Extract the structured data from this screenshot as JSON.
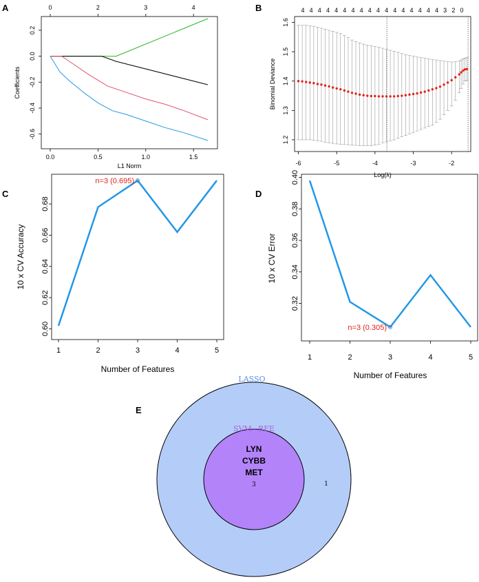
{
  "panels": {
    "A": "A",
    "B": "B",
    "C": "C",
    "D": "D",
    "E": "E"
  },
  "chart_data": [
    {
      "id": "A",
      "type": "line",
      "xlabel": "L1 Norm",
      "ylabel": "Coefficients",
      "xlim": [
        0,
        1.65
      ],
      "ylim": [
        -0.65,
        0.29
      ],
      "x_ticks": [
        "0.0",
        "0.5",
        "1.0",
        "1.5"
      ],
      "y_ticks": [
        "-0.6",
        "-0.4",
        "-0.2",
        "0.0",
        "0.2"
      ],
      "top_ticks": [
        "0",
        "2",
        "3",
        "4"
      ],
      "series": [
        {
          "color": "#22b522",
          "x": [
            0,
            0.69,
            1.65
          ],
          "y": [
            0,
            0,
            0.29
          ]
        },
        {
          "color": "#000000",
          "x": [
            0,
            0.54,
            0.69,
            1.65
          ],
          "y": [
            0,
            0,
            -0.04,
            -0.22
          ]
        },
        {
          "color": "#df536b",
          "x": [
            0,
            0.12,
            0.22,
            0.4,
            0.6,
            0.8,
            1.0,
            1.2,
            1.4,
            1.65
          ],
          "y": [
            0,
            0,
            -0.05,
            -0.14,
            -0.23,
            -0.28,
            -0.33,
            -0.37,
            -0.42,
            -0.49
          ]
        },
        {
          "color": "#2297e6",
          "x": [
            0,
            0.1,
            0.2,
            0.35,
            0.5,
            0.65,
            0.8,
            1.0,
            1.2,
            1.4,
            1.65
          ],
          "y": [
            0,
            -0.12,
            -0.19,
            -0.28,
            -0.36,
            -0.42,
            -0.45,
            -0.5,
            -0.55,
            -0.59,
            -0.65
          ]
        }
      ]
    },
    {
      "id": "B",
      "type": "scatter",
      "xlabel": "Log(λ)",
      "ylabel": "Binomial Deviance",
      "xlim": [
        -6.1,
        -1.5
      ],
      "ylim": [
        1.16,
        1.62
      ],
      "x_ticks": [
        "-6",
        "-5",
        "-4",
        "-3",
        "-2"
      ],
      "y_ticks": [
        "1.2",
        "1.3",
        "1.4",
        "1.5",
        "1.6"
      ],
      "top_ticks": [
        "4",
        "4",
        "4",
        "4",
        "4",
        "4",
        "4",
        "4",
        "4",
        "4",
        "4",
        "4",
        "4",
        "4",
        "4",
        "4",
        "4",
        "3",
        "2",
        "0"
      ],
      "vlines": [
        -3.69,
        -1.57
      ],
      "points": [
        {
          "x": -6.0,
          "y": 1.4,
          "lo": 1.2,
          "hi": 1.59
        },
        {
          "x": -5.9,
          "y": 1.399,
          "lo": 1.2,
          "hi": 1.59
        },
        {
          "x": -5.8,
          "y": 1.397,
          "lo": 1.2,
          "hi": 1.59
        },
        {
          "x": -5.7,
          "y": 1.395,
          "lo": 1.2,
          "hi": 1.588
        },
        {
          "x": -5.6,
          "y": 1.393,
          "lo": 1.198,
          "hi": 1.587
        },
        {
          "x": -5.5,
          "y": 1.39,
          "lo": 1.197,
          "hi": 1.584
        },
        {
          "x": -5.4,
          "y": 1.388,
          "lo": 1.195,
          "hi": 1.58
        },
        {
          "x": -5.3,
          "y": 1.385,
          "lo": 1.192,
          "hi": 1.577
        },
        {
          "x": -5.2,
          "y": 1.382,
          "lo": 1.19,
          "hi": 1.573
        },
        {
          "x": -5.1,
          "y": 1.378,
          "lo": 1.188,
          "hi": 1.57
        },
        {
          "x": -5.0,
          "y": 1.375,
          "lo": 1.186,
          "hi": 1.566
        },
        {
          "x": -4.9,
          "y": 1.372,
          "lo": 1.185,
          "hi": 1.562
        },
        {
          "x": -4.8,
          "y": 1.368,
          "lo": 1.184,
          "hi": 1.555
        },
        {
          "x": -4.7,
          "y": 1.364,
          "lo": 1.183,
          "hi": 1.548
        },
        {
          "x": -4.6,
          "y": 1.36,
          "lo": 1.182,
          "hi": 1.54
        },
        {
          "x": -4.5,
          "y": 1.357,
          "lo": 1.181,
          "hi": 1.535
        },
        {
          "x": -4.4,
          "y": 1.354,
          "lo": 1.18,
          "hi": 1.53
        },
        {
          "x": -4.3,
          "y": 1.352,
          "lo": 1.18,
          "hi": 1.526
        },
        {
          "x": -4.2,
          "y": 1.35,
          "lo": 1.18,
          "hi": 1.523
        },
        {
          "x": -4.1,
          "y": 1.349,
          "lo": 1.18,
          "hi": 1.52
        },
        {
          "x": -4.0,
          "y": 1.349,
          "lo": 1.182,
          "hi": 1.518
        },
        {
          "x": -3.9,
          "y": 1.348,
          "lo": 1.185,
          "hi": 1.515
        },
        {
          "x": -3.8,
          "y": 1.348,
          "lo": 1.19,
          "hi": 1.512
        },
        {
          "x": -3.7,
          "y": 1.348,
          "lo": 1.193,
          "hi": 1.508
        },
        {
          "x": -3.6,
          "y": 1.348,
          "lo": 1.197,
          "hi": 1.505
        },
        {
          "x": -3.5,
          "y": 1.348,
          "lo": 1.2,
          "hi": 1.502
        },
        {
          "x": -3.4,
          "y": 1.349,
          "lo": 1.205,
          "hi": 1.498
        },
        {
          "x": -3.3,
          "y": 1.35,
          "lo": 1.21,
          "hi": 1.494
        },
        {
          "x": -3.2,
          "y": 1.352,
          "lo": 1.215,
          "hi": 1.49
        },
        {
          "x": -3.1,
          "y": 1.354,
          "lo": 1.22,
          "hi": 1.488
        },
        {
          "x": -3.0,
          "y": 1.356,
          "lo": 1.225,
          "hi": 1.485
        },
        {
          "x": -2.9,
          "y": 1.358,
          "lo": 1.23,
          "hi": 1.482
        },
        {
          "x": -2.8,
          "y": 1.361,
          "lo": 1.235,
          "hi": 1.48
        },
        {
          "x": -2.7,
          "y": 1.364,
          "lo": 1.24,
          "hi": 1.478
        },
        {
          "x": -2.6,
          "y": 1.368,
          "lo": 1.245,
          "hi": 1.476
        },
        {
          "x": -2.5,
          "y": 1.372,
          "lo": 1.25,
          "hi": 1.474
        },
        {
          "x": -2.4,
          "y": 1.376,
          "lo": 1.26,
          "hi": 1.472
        },
        {
          "x": -2.3,
          "y": 1.381,
          "lo": 1.27,
          "hi": 1.47
        },
        {
          "x": -2.2,
          "y": 1.388,
          "lo": 1.285,
          "hi": 1.468
        },
        {
          "x": -2.1,
          "y": 1.395,
          "lo": 1.3,
          "hi": 1.466
        },
        {
          "x": -2.0,
          "y": 1.403,
          "lo": 1.315,
          "hi": 1.465
        },
        {
          "x": -1.9,
          "y": 1.413,
          "lo": 1.335,
          "hi": 1.466
        },
        {
          "x": -1.8,
          "y": 1.423,
          "lo": 1.36,
          "hi": 1.468
        },
        {
          "x": -1.75,
          "y": 1.43,
          "lo": 1.375,
          "hi": 1.472
        },
        {
          "x": -1.7,
          "y": 1.436,
          "lo": 1.39,
          "hi": 1.476
        },
        {
          "x": -1.65,
          "y": 1.44,
          "lo": 1.4,
          "hi": 1.478
        },
        {
          "x": -1.6,
          "y": 1.441,
          "lo": 1.402,
          "hi": 1.48
        }
      ]
    },
    {
      "id": "C",
      "type": "line",
      "xlabel": "Number of Features",
      "ylabel": "10 x CV Accuracy",
      "categories": [
        "1",
        "2",
        "3",
        "4",
        "5"
      ],
      "x": [
        1,
        2,
        3,
        4,
        5
      ],
      "values": [
        0.602,
        0.678,
        0.695,
        0.662,
        0.695
      ],
      "ylim": [
        0.598,
        0.699
      ],
      "y_ticks": [
        "0.60",
        "0.62",
        "0.64",
        "0.66",
        "0.68"
      ],
      "highlight_x": 3,
      "annotation": "n=3 (0.695)",
      "color": "#2297e6"
    },
    {
      "id": "D",
      "type": "line",
      "xlabel": "Number of Features",
      "ylabel": "10 x CV Error",
      "categories": [
        "1",
        "2",
        "3",
        "4",
        "5"
      ],
      "x": [
        1,
        2,
        3,
        4,
        5
      ],
      "values": [
        0.398,
        0.321,
        0.305,
        0.338,
        0.305
      ],
      "ylim": [
        0.301,
        0.402
      ],
      "y_ticks": [
        "0.32",
        "0.34",
        "0.36",
        "0.38",
        "0.40"
      ],
      "highlight_x": 3,
      "annotation": "n=3 (0.305)",
      "color": "#2297e6"
    }
  ],
  "venn": {
    "outer_label": "LASSO",
    "inner_label": "SVM−RFE",
    "genes": [
      "LYN",
      "CYBB",
      "MET"
    ],
    "inner_count": "3",
    "outer_count": "1",
    "outer_color": "#b4cdf8",
    "inner_color": "#b383f9",
    "outer_label_color": "#5b8ee8",
    "inner_label_color": "#b05ce8"
  }
}
